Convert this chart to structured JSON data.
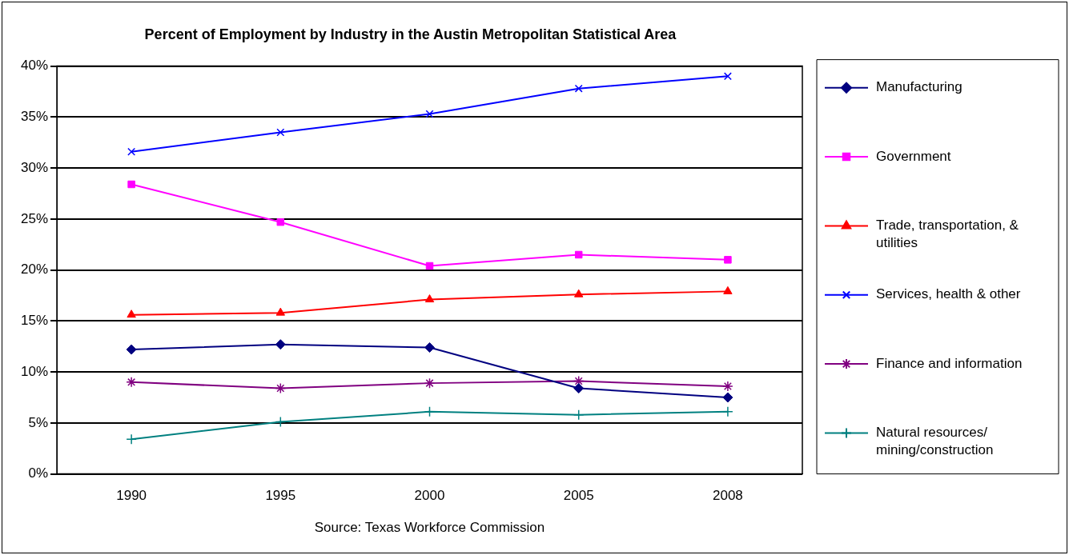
{
  "chart_data": {
    "type": "line",
    "title": "Percent of Employment by Industry in the Austin Metropolitan Statistical Area",
    "categories": [
      "1990",
      "1995",
      "2000",
      "2005",
      "2008"
    ],
    "series": [
      {
        "name": "Manufacturing",
        "color": "#000080",
        "marker": "diamond",
        "values": [
          12.2,
          12.7,
          12.4,
          8.4,
          7.5
        ]
      },
      {
        "name": "Government",
        "color": "#ff00ff",
        "marker": "square",
        "values": [
          28.4,
          24.7,
          20.4,
          21.5,
          21.0
        ]
      },
      {
        "name": "Trade, transportation, & utilities",
        "color": "#ff0000",
        "marker": "triangle",
        "values": [
          15.6,
          15.8,
          17.1,
          17.6,
          17.9
        ]
      },
      {
        "name": "Services, health & other",
        "color": "#0000ff",
        "marker": "cross",
        "values": [
          31.6,
          33.5,
          35.3,
          37.8,
          39.0
        ]
      },
      {
        "name": "Finance and information",
        "color": "#800080",
        "marker": "cross",
        "values": [
          9.0,
          8.4,
          8.9,
          9.1,
          8.6
        ]
      },
      {
        "name": "Natural resources/ mining/construction",
        "color": "#008080",
        "marker": "cross",
        "values": [
          3.4,
          5.1,
          6.1,
          5.8,
          6.1
        ]
      }
    ],
    "ylim": [
      0,
      40
    ],
    "yticks": [
      {
        "value": 0,
        "label": "0%"
      },
      {
        "value": 5,
        "label": "5%"
      },
      {
        "value": 10,
        "label": "10%"
      },
      {
        "value": 15,
        "label": "15%"
      },
      {
        "value": 20,
        "label": "20%"
      },
      {
        "value": 25,
        "label": "25%"
      },
      {
        "value": 30,
        "label": "30%"
      },
      {
        "value": 35,
        "label": "35%"
      },
      {
        "value": 40,
        "label": "40%"
      }
    ],
    "grid": "y",
    "legend": "right",
    "line_style": "solid",
    "annotations": [
      "Source: Texas Workforce Commission"
    ]
  }
}
